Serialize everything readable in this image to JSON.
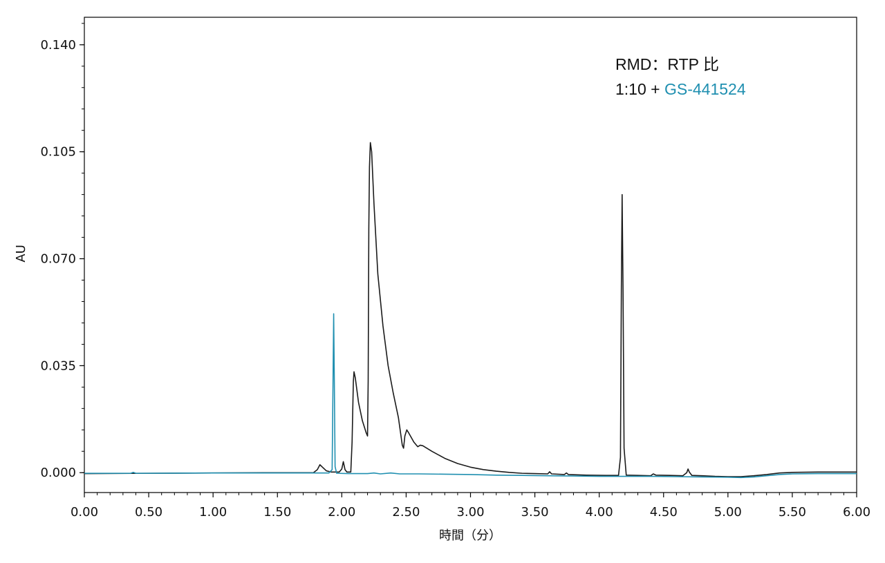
{
  "chart_data": {
    "type": "line",
    "title": "",
    "xlabel": "時間（分）",
    "ylabel": "AU",
    "xlim": [
      0.0,
      6.0
    ],
    "ylim": [
      -0.0065,
      0.149
    ],
    "grid": false,
    "x_ticks": [
      "0.00",
      "0.50",
      "1.00",
      "1.50",
      "2.00",
      "2.50",
      "3.00",
      "3.50",
      "4.00",
      "4.50",
      "5.00",
      "5.50",
      "6.00"
    ],
    "y_ticks": [
      "0.000",
      "0.035",
      "0.070",
      "0.105",
      "0.140"
    ],
    "legend": {
      "line1": "RMD：RTP 比",
      "line2_prefix": "1:10 + ",
      "line2_highlight": "GS-441524"
    },
    "colors": {
      "series_black": "#1a1a1a",
      "series_teal": "#1f8fb0"
    },
    "series": [
      {
        "name": "1:10",
        "color": "#1a1a1a",
        "points": [
          [
            0.0,
            -0.0003
          ],
          [
            0.5,
            -0.0002
          ],
          [
            1.0,
            -0.0001
          ],
          [
            1.5,
            0.0
          ],
          [
            1.78,
            0.0
          ],
          [
            1.81,
            0.001
          ],
          [
            1.83,
            0.0026
          ],
          [
            1.85,
            0.0018
          ],
          [
            1.88,
            0.0006
          ],
          [
            1.92,
            0.0002
          ],
          [
            1.98,
            0.0002
          ],
          [
            2.0,
            0.0012
          ],
          [
            2.012,
            0.0036
          ],
          [
            2.025,
            0.001
          ],
          [
            2.04,
            0.0002
          ],
          [
            2.07,
            0.0002
          ],
          [
            2.08,
            0.01
          ],
          [
            2.09,
            0.03
          ],
          [
            2.095,
            0.033
          ],
          [
            2.105,
            0.031
          ],
          [
            2.13,
            0.023
          ],
          [
            2.16,
            0.017
          ],
          [
            2.19,
            0.013
          ],
          [
            2.2,
            0.012
          ],
          [
            2.205,
            0.03
          ],
          [
            2.21,
            0.08
          ],
          [
            2.215,
            0.1
          ],
          [
            2.222,
            0.108
          ],
          [
            2.232,
            0.105
          ],
          [
            2.25,
            0.088
          ],
          [
            2.28,
            0.065
          ],
          [
            2.32,
            0.048
          ],
          [
            2.36,
            0.035
          ],
          [
            2.4,
            0.026
          ],
          [
            2.44,
            0.018
          ],
          [
            2.47,
            0.009
          ],
          [
            2.48,
            0.008
          ],
          [
            2.49,
            0.012
          ],
          [
            2.505,
            0.014
          ],
          [
            2.52,
            0.013
          ],
          [
            2.56,
            0.01
          ],
          [
            2.59,
            0.0085
          ],
          [
            2.61,
            0.009
          ],
          [
            2.63,
            0.0088
          ],
          [
            2.7,
            0.007
          ],
          [
            2.8,
            0.0047
          ],
          [
            2.9,
            0.003
          ],
          [
            3.0,
            0.0018
          ],
          [
            3.1,
            0.001
          ],
          [
            3.2,
            0.0005
          ],
          [
            3.3,
            0.0001
          ],
          [
            3.4,
            -0.0002
          ],
          [
            3.5,
            -0.0003
          ],
          [
            3.6,
            -0.0004
          ],
          [
            3.615,
            0.0003
          ],
          [
            3.63,
            -0.0004
          ],
          [
            3.73,
            -0.0006
          ],
          [
            3.745,
            -0.0001
          ],
          [
            3.76,
            -0.0006
          ],
          [
            3.9,
            -0.0008
          ],
          [
            4.05,
            -0.0009
          ],
          [
            4.15,
            -0.0009
          ],
          [
            4.165,
            0.005
          ],
          [
            4.172,
            0.06
          ],
          [
            4.178,
            0.091
          ],
          [
            4.185,
            0.06
          ],
          [
            4.193,
            0.008
          ],
          [
            4.21,
            -0.0008
          ],
          [
            4.3,
            -0.0009
          ],
          [
            4.4,
            -0.001
          ],
          [
            4.42,
            -0.0004
          ],
          [
            4.44,
            -0.0008
          ],
          [
            4.55,
            -0.0009
          ],
          [
            4.65,
            -0.001
          ],
          [
            4.68,
            0.0
          ],
          [
            4.69,
            0.0012
          ],
          [
            4.7,
            0.0002
          ],
          [
            4.72,
            -0.0009
          ],
          [
            4.8,
            -0.001
          ],
          [
            4.9,
            -0.0012
          ],
          [
            5.0,
            -0.0013
          ],
          [
            5.1,
            -0.0013
          ],
          [
            5.2,
            -0.001
          ],
          [
            5.3,
            -0.0006
          ],
          [
            5.4,
            -0.0001
          ],
          [
            5.5,
            0.0001
          ],
          [
            5.7,
            0.0002
          ],
          [
            6.0,
            0.0002
          ]
        ]
      },
      {
        "name": "GS-441524",
        "color": "#1f8fb0",
        "points": [
          [
            0.0,
            -0.0002
          ],
          [
            0.36,
            -0.0002
          ],
          [
            0.38,
            0.0001
          ],
          [
            0.4,
            -0.0002
          ],
          [
            1.0,
            -0.0001
          ],
          [
            1.5,
            -0.0001
          ],
          [
            1.9,
            -0.0001
          ],
          [
            1.925,
            0.001
          ],
          [
            1.932,
            0.03
          ],
          [
            1.937,
            0.052
          ],
          [
            1.942,
            0.03
          ],
          [
            1.948,
            0.002
          ],
          [
            1.96,
            -0.0002
          ],
          [
            2.05,
            -0.0003
          ],
          [
            2.2,
            -0.0003
          ],
          [
            2.25,
            -0.0001
          ],
          [
            2.3,
            -0.0004
          ],
          [
            2.38,
            -0.0001
          ],
          [
            2.45,
            -0.0004
          ],
          [
            2.6,
            -0.0004
          ],
          [
            2.8,
            -0.0005
          ],
          [
            3.0,
            -0.0006
          ],
          [
            3.2,
            -0.0008
          ],
          [
            3.4,
            -0.0009
          ],
          [
            3.6,
            -0.001
          ],
          [
            3.8,
            -0.0011
          ],
          [
            4.0,
            -0.0012
          ],
          [
            4.2,
            -0.0012
          ],
          [
            4.4,
            -0.0012
          ],
          [
            4.6,
            -0.0013
          ],
          [
            4.8,
            -0.0014
          ],
          [
            5.0,
            -0.0015
          ],
          [
            5.1,
            -0.0016
          ],
          [
            5.2,
            -0.0014
          ],
          [
            5.3,
            -0.001
          ],
          [
            5.4,
            -0.0006
          ],
          [
            5.5,
            -0.0004
          ],
          [
            5.7,
            -0.0003
          ],
          [
            6.0,
            -0.0003
          ]
        ]
      }
    ]
  }
}
